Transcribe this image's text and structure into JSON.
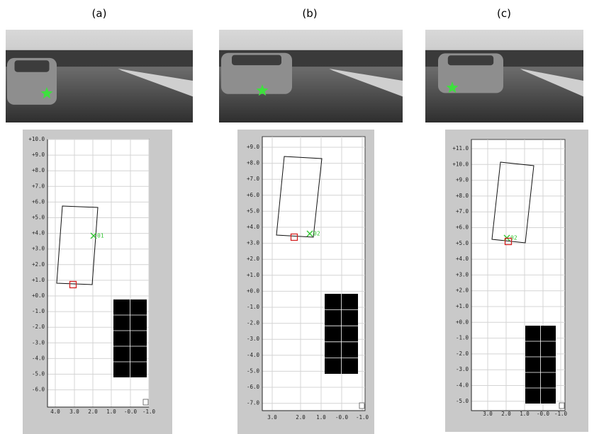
{
  "panels": [
    {
      "label": "(a)",
      "yticks": [
        "+10.0",
        "+9.0",
        "+8.0",
        "+7.0",
        "+6.0",
        "+5.0",
        "+4.0",
        "+3.0",
        "+2.0",
        "+1.0",
        "+0.0",
        "-1.0",
        "-2.0",
        "-3.0",
        "-4.0",
        "-5.0",
        "-6.0"
      ],
      "xticks": [
        "4.0",
        "3.0",
        "2.0",
        "1.0",
        "-0.0",
        "-1.0"
      ],
      "marker_label": "01"
    },
    {
      "label": "(b)",
      "yticks": [
        "+9.0",
        "+8.0",
        "+7.0",
        "+6.0",
        "+5.0",
        "+4.0",
        "+3.0",
        "+2.0",
        "+1.0",
        "+0.0",
        "-1.0",
        "-2.0",
        "-3.0",
        "-4.0",
        "-5.0",
        "-6.0",
        "-7.0"
      ],
      "xticks": [
        "3.0",
        "2.0",
        "1.0",
        "-0.0",
        "-1.0"
      ],
      "marker_label": "02"
    },
    {
      "label": "(c)",
      "yticks": [
        "+11.0",
        "+10.0",
        "+9.0",
        "+8.0",
        "+7.0",
        "+6.0",
        "+5.0",
        "+4.0",
        "+3.0",
        "+2.0",
        "+1.0",
        "+0.0",
        "-1.0",
        "-2.0",
        "-3.0",
        "-4.0",
        "-5.0"
      ],
      "xticks": [
        "3.0",
        "2.0",
        "1.0",
        "-0.0",
        "-1.0"
      ],
      "marker_label": "02"
    }
  ]
}
